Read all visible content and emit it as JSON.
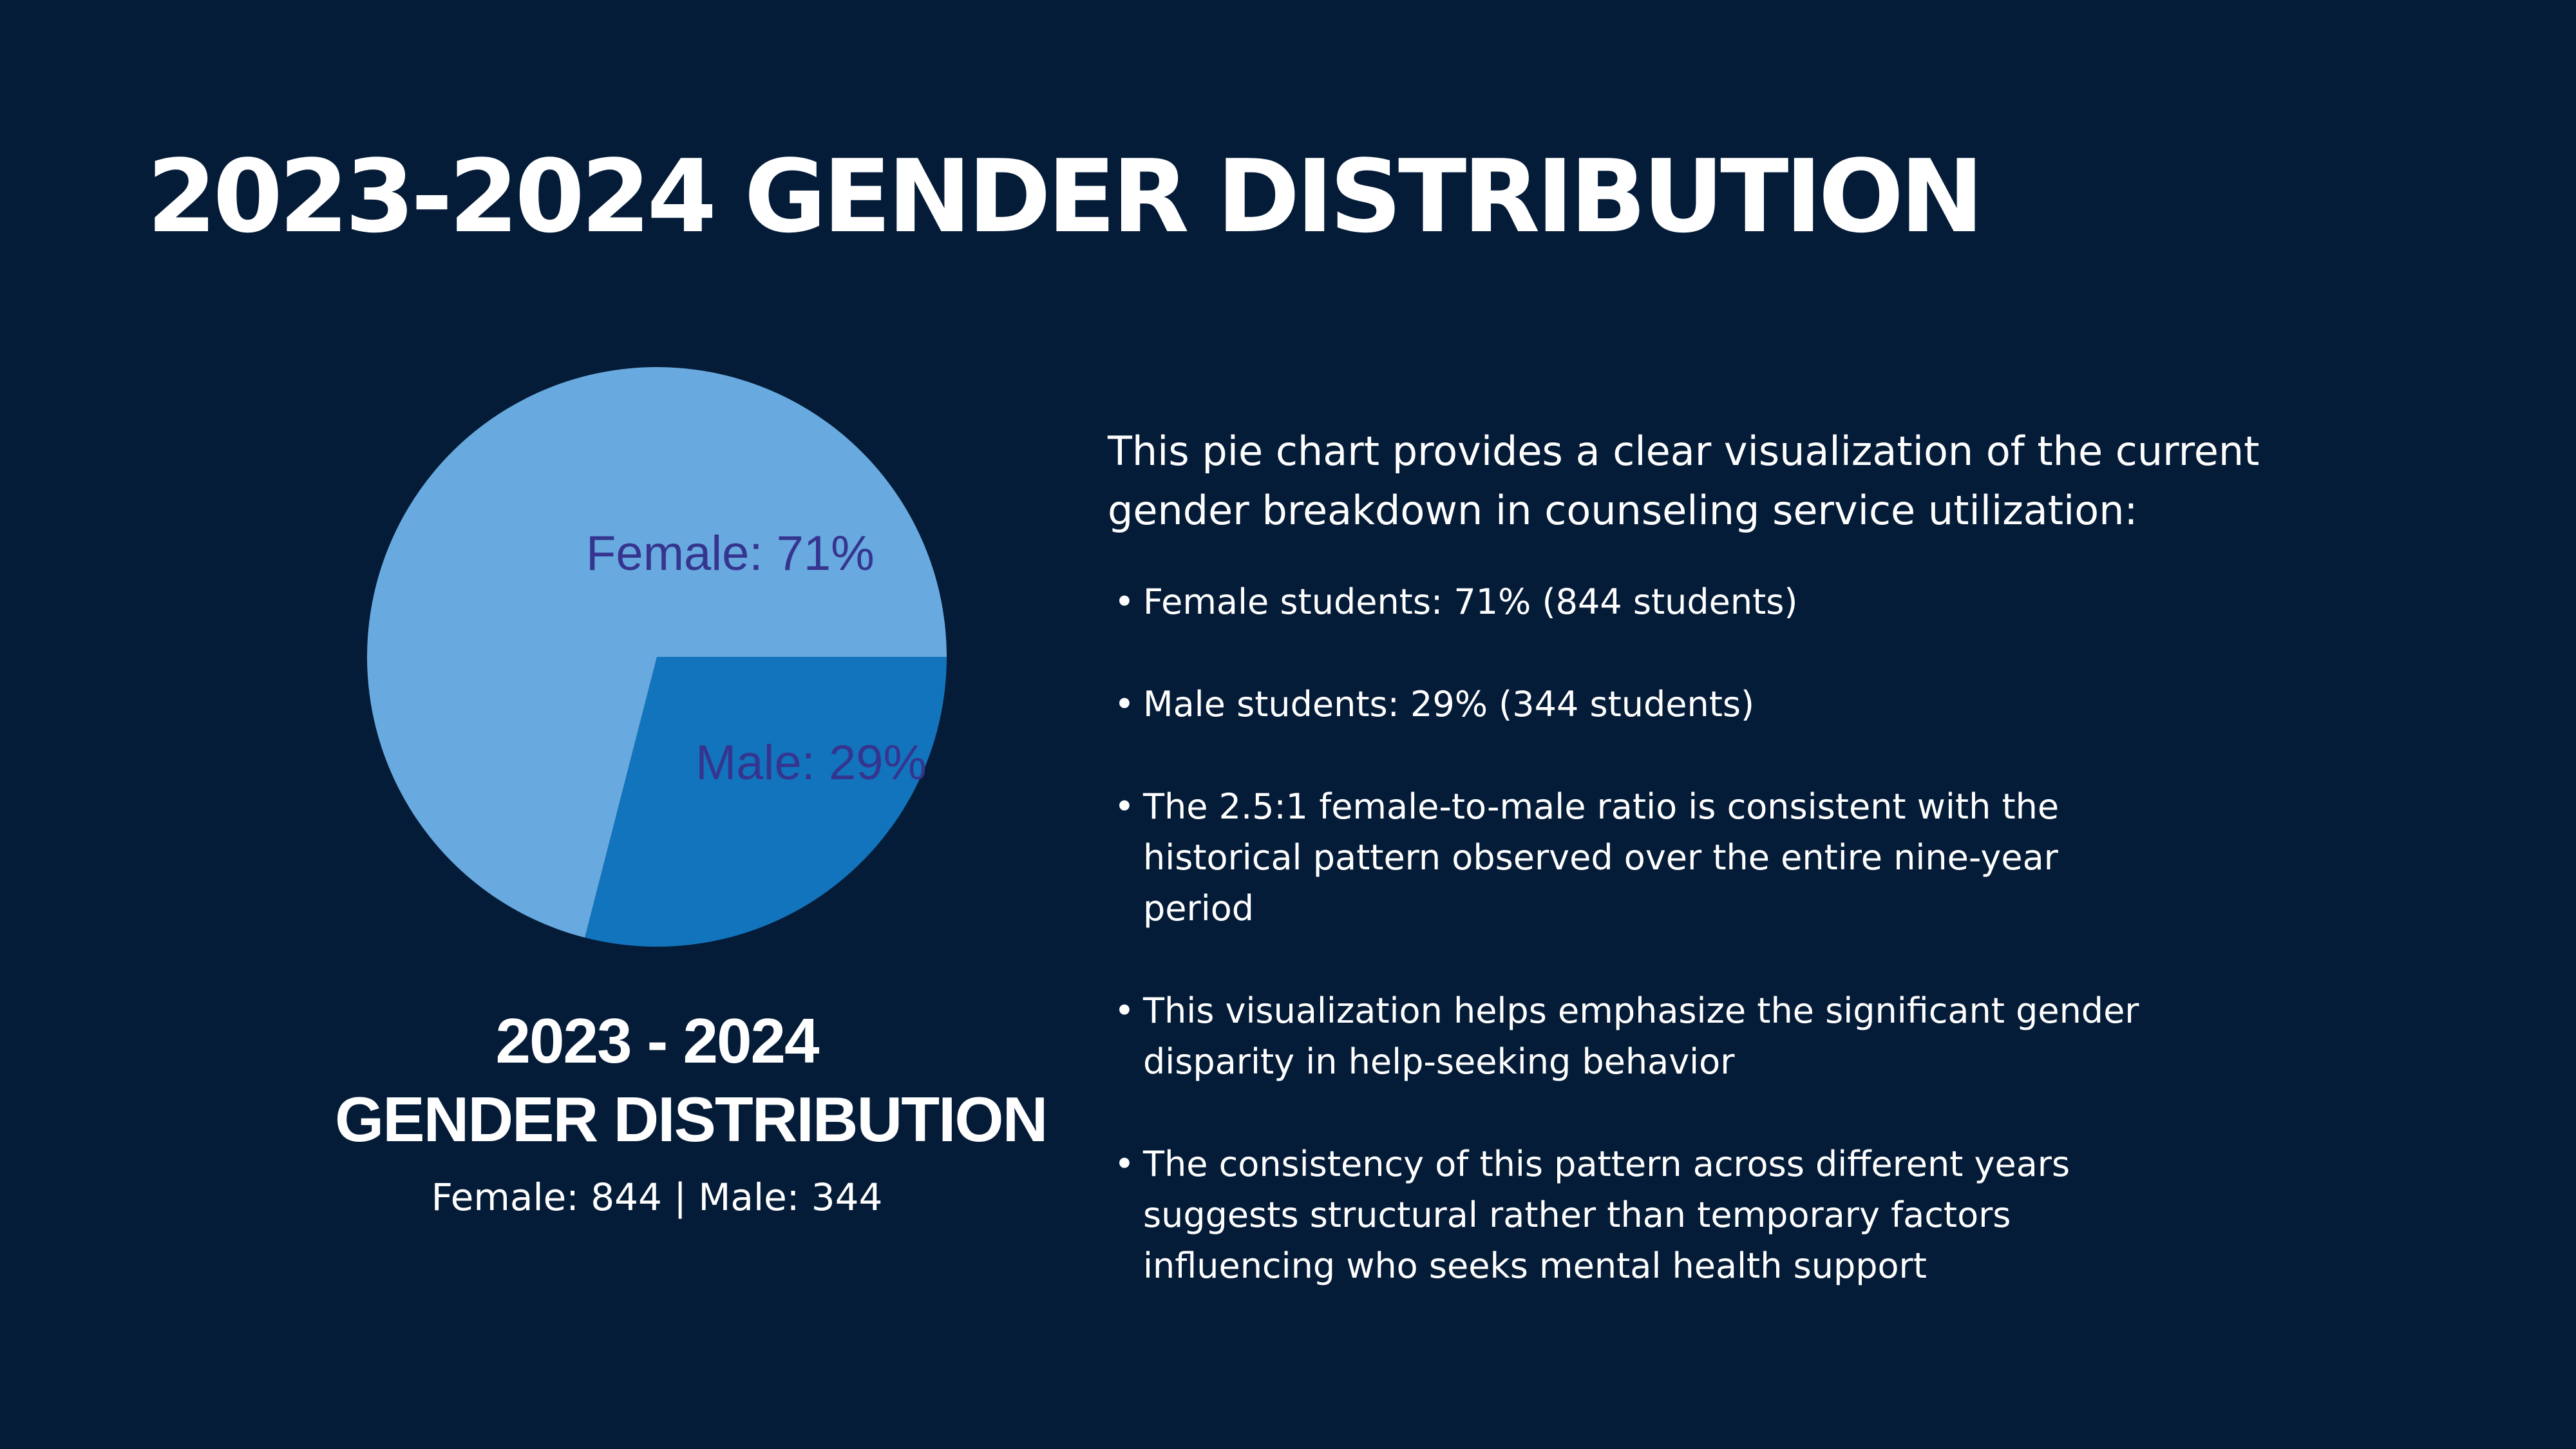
{
  "title": "2023-2024 GENDER DISTRIBUTION",
  "colors": {
    "background": "#051c38",
    "female": "#68aadf",
    "male": "#1274bc",
    "slice_label": "#35358f",
    "text": "#ffffff"
  },
  "chart_data": {
    "type": "pie",
    "slices": [
      {
        "name": "Female",
        "value": 71,
        "label": "Female: 71%",
        "color": "#68aadf"
      },
      {
        "name": "Male",
        "value": 29,
        "label": "Male: 29%",
        "color": "#1274bc"
      }
    ],
    "start_angle_deg": 0,
    "direction": "clockwise",
    "first_slice": "Male",
    "caption": {
      "year": "2023 - 2024",
      "title": "GENDER DISTRIBUTION",
      "counts": "Female: 844 | Male: 344"
    }
  },
  "description": {
    "intro": "This pie chart provides a clear visualization of the current gender breakdown in counseling service utilization:",
    "bullets": [
      "Female students: 71% (844 students)",
      "Male students: 29% (344 students)",
      "The 2.5:1 female-to-male ratio is consistent with the historical pattern observed over the entire nine-year period",
      "This visualization helps emphasize the significant gender disparity in help-seeking behavior",
      "The consistency of this pattern across different years suggests structural rather than temporary factors influencing who seeks mental health support"
    ]
  }
}
